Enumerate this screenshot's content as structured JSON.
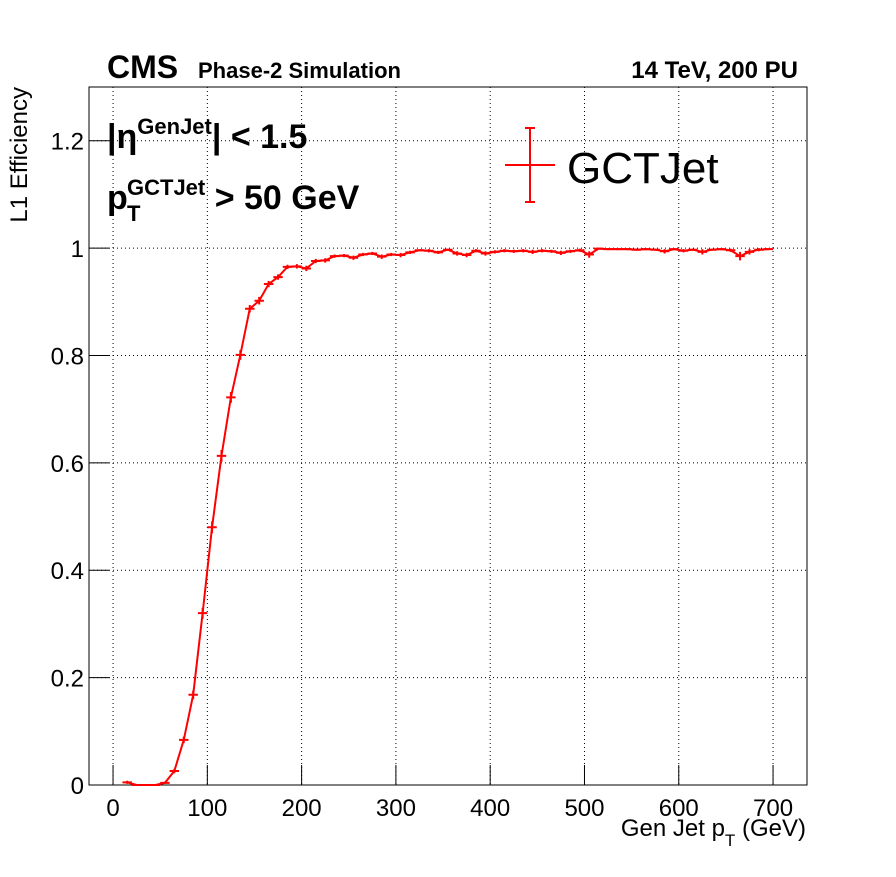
{
  "chart_data": {
    "type": "errorbar",
    "experiment": "CMS",
    "subtitle": "Phase-2 Simulation",
    "conditions": "14 TeV, 200 PU",
    "annotation_eta": [
      "|η",
      "GenJet",
      "| < 1.5"
    ],
    "annotation_pt": [
      "p",
      "T",
      "GCTJet",
      " > 50 GeV"
    ],
    "xlabel": [
      "Gen Jet p",
      "T",
      " (GeV)"
    ],
    "ylabel": "L1 Efficiency",
    "xlim": [
      -25.5,
      736
    ],
    "ylim": [
      0,
      1.3
    ],
    "xticks": [
      0,
      100,
      200,
      300,
      400,
      500,
      600,
      700
    ],
    "yticks": [
      0,
      0.2,
      0.4,
      0.6,
      0.8,
      1,
      1.2
    ],
    "grid": true,
    "legend_position": "upper right",
    "bin_width": 10,
    "x": [
      15,
      25,
      35,
      45,
      55,
      65,
      75,
      85,
      95,
      105,
      115,
      125,
      135,
      145,
      155,
      165,
      175,
      185,
      195,
      205,
      215,
      225,
      235,
      245,
      255,
      265,
      275,
      285,
      295,
      305,
      315,
      325,
      335,
      345,
      355,
      365,
      375,
      385,
      395,
      405,
      415,
      425,
      435,
      445,
      455,
      465,
      475,
      485,
      495,
      505,
      515,
      525,
      535,
      545,
      555,
      565,
      575,
      585,
      595,
      605,
      615,
      625,
      635,
      645,
      655,
      665,
      675,
      685,
      695
    ],
    "series": [
      {
        "name": "GCTJet",
        "color": "#ff0000",
        "values": [
          0.005,
          0,
          0,
          0,
          0.004,
          0.026,
          0.084,
          0.168,
          0.32,
          0.48,
          0.613,
          0.722,
          0.801,
          0.887,
          0.902,
          0.933,
          0.946,
          0.965,
          0.966,
          0.962,
          0.976,
          0.977,
          0.985,
          0.986,
          0.982,
          0.988,
          0.99,
          0.984,
          0.988,
          0.987,
          0.992,
          0.996,
          0.995,
          0.992,
          0.997,
          0.99,
          0.987,
          0.995,
          0.99,
          0.993,
          0.995,
          0.994,
          0.995,
          0.993,
          0.995,
          0.994,
          0.991,
          0.994,
          0.996,
          0.988,
          0.999,
          0.998,
          0.998,
          0.998,
          0.997,
          0.998,
          0.997,
          0.994,
          0.998,
          0.995,
          0.997,
          0.993,
          0.997,
          0.998,
          0.996,
          0.985,
          0.993,
          0.997,
          0.998
        ],
        "errors": [
          0.003,
          0.001,
          0.001,
          0.001,
          0.002,
          0.004,
          0.006,
          0.008,
          0.01,
          0.011,
          0.011,
          0.01,
          0.009,
          0.007,
          0.007,
          0.006,
          0.005,
          0.004,
          0.004,
          0.005,
          0.004,
          0.004,
          0.003,
          0.003,
          0.004,
          0.003,
          0.003,
          0.004,
          0.003,
          0.004,
          0.003,
          0.002,
          0.003,
          0.003,
          0.002,
          0.004,
          0.004,
          0.003,
          0.004,
          0.003,
          0.003,
          0.003,
          0.003,
          0.004,
          0.003,
          0.003,
          0.004,
          0.003,
          0.003,
          0.006,
          0.001,
          0.002,
          0.002,
          0.002,
          0.002,
          0.002,
          0.002,
          0.004,
          0.002,
          0.003,
          0.002,
          0.005,
          0.002,
          0.002,
          0.003,
          0.008,
          0.005,
          0.003,
          0.002
        ]
      }
    ]
  }
}
